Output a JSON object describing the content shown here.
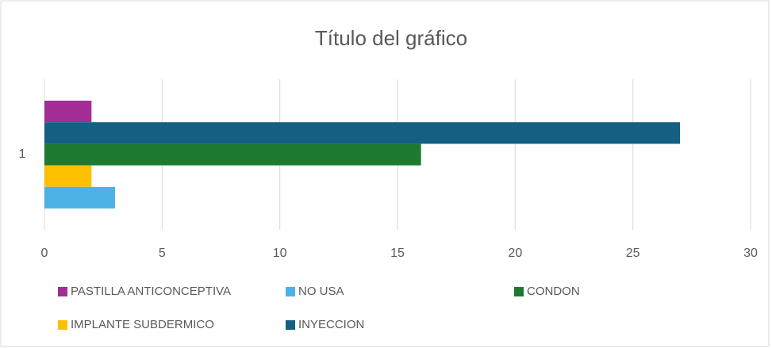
{
  "chart_data": {
    "type": "barh",
    "title": "Título del gráfico",
    "categories": [
      "1"
    ],
    "series": [
      {
        "name": "PASTILLA  ANTICONCEPTIVA",
        "color": "#a12d95",
        "values": [
          2
        ]
      },
      {
        "name": "INYECCION",
        "color": "#145f82",
        "values": [
          27
        ]
      },
      {
        "name": "CONDON",
        "color": "#1e7a31",
        "values": [
          16
        ]
      },
      {
        "name": "IMPLANTE SUBDERMICO",
        "color": "#fcc000",
        "values": [
          2
        ]
      },
      {
        "name": "NO USA",
        "color": "#4db3e6",
        "values": [
          3
        ]
      }
    ],
    "xlim": [
      0,
      30
    ],
    "xticks": [
      0,
      5,
      10,
      15,
      20,
      25,
      30
    ],
    "grid": true
  }
}
